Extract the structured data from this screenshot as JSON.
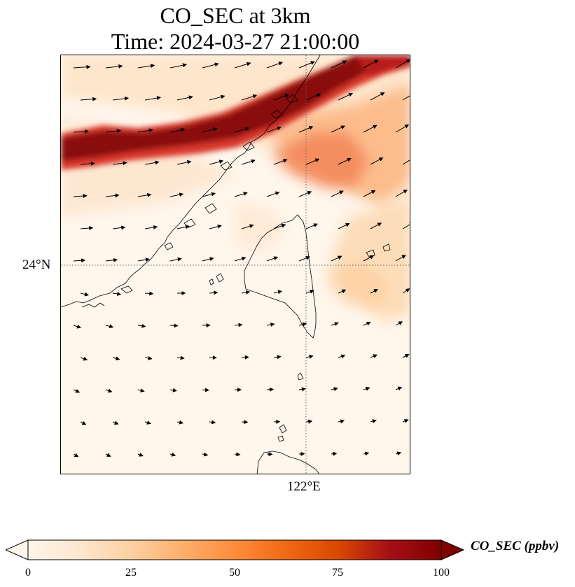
{
  "title": {
    "line1": "CO_SEC at 3km",
    "line2": "Time: 2024-03-27 21:00:00"
  },
  "map": {
    "latitude_label": "24°N",
    "longitude_label": "122°E",
    "gridline_style": "dotted"
  },
  "colorbar": {
    "label": "CO_SEC (ppbv)",
    "ticks": [
      "0",
      "25",
      "50",
      "75",
      "100"
    ],
    "min": 0,
    "max": 100,
    "extend": "both",
    "colors": [
      "#fff5eb",
      "#fee6ce",
      "#fdd0a2",
      "#fdae6b",
      "#fd8d3c",
      "#f16913",
      "#d94801",
      "#a50f15",
      "#7f0000"
    ]
  },
  "colors": {
    "low": "#fff5eb",
    "plume_high": "#7f0000",
    "coastline": "#000000",
    "wind_vector": "#000000"
  }
}
